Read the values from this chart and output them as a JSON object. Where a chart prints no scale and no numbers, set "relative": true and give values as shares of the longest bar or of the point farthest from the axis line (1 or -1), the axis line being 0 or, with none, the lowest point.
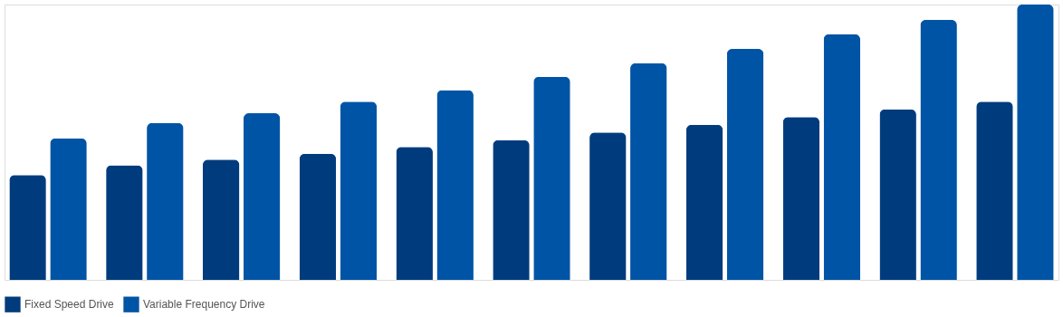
{
  "chart_data": {
    "type": "bar",
    "relative": true,
    "tick_labels": false,
    "legend": "bottom",
    "categories": [
      null,
      null,
      null,
      null,
      null,
      null,
      null,
      null,
      null,
      null,
      null
    ],
    "series": [
      {
        "name": "Fixed Speed Drive",
        "color": "#003c7d",
        "values": [
          0.381,
          0.416,
          0.437,
          0.458,
          0.483,
          0.507,
          0.535,
          0.563,
          0.591,
          0.619,
          0.647
        ]
      },
      {
        "name": "Variable Frequency Drive",
        "color": "#0054a6",
        "values": [
          0.514,
          0.57,
          0.605,
          0.647,
          0.689,
          0.738,
          0.787,
          0.839,
          0.892,
          0.944,
          1
        ]
      }
    ]
  }
}
